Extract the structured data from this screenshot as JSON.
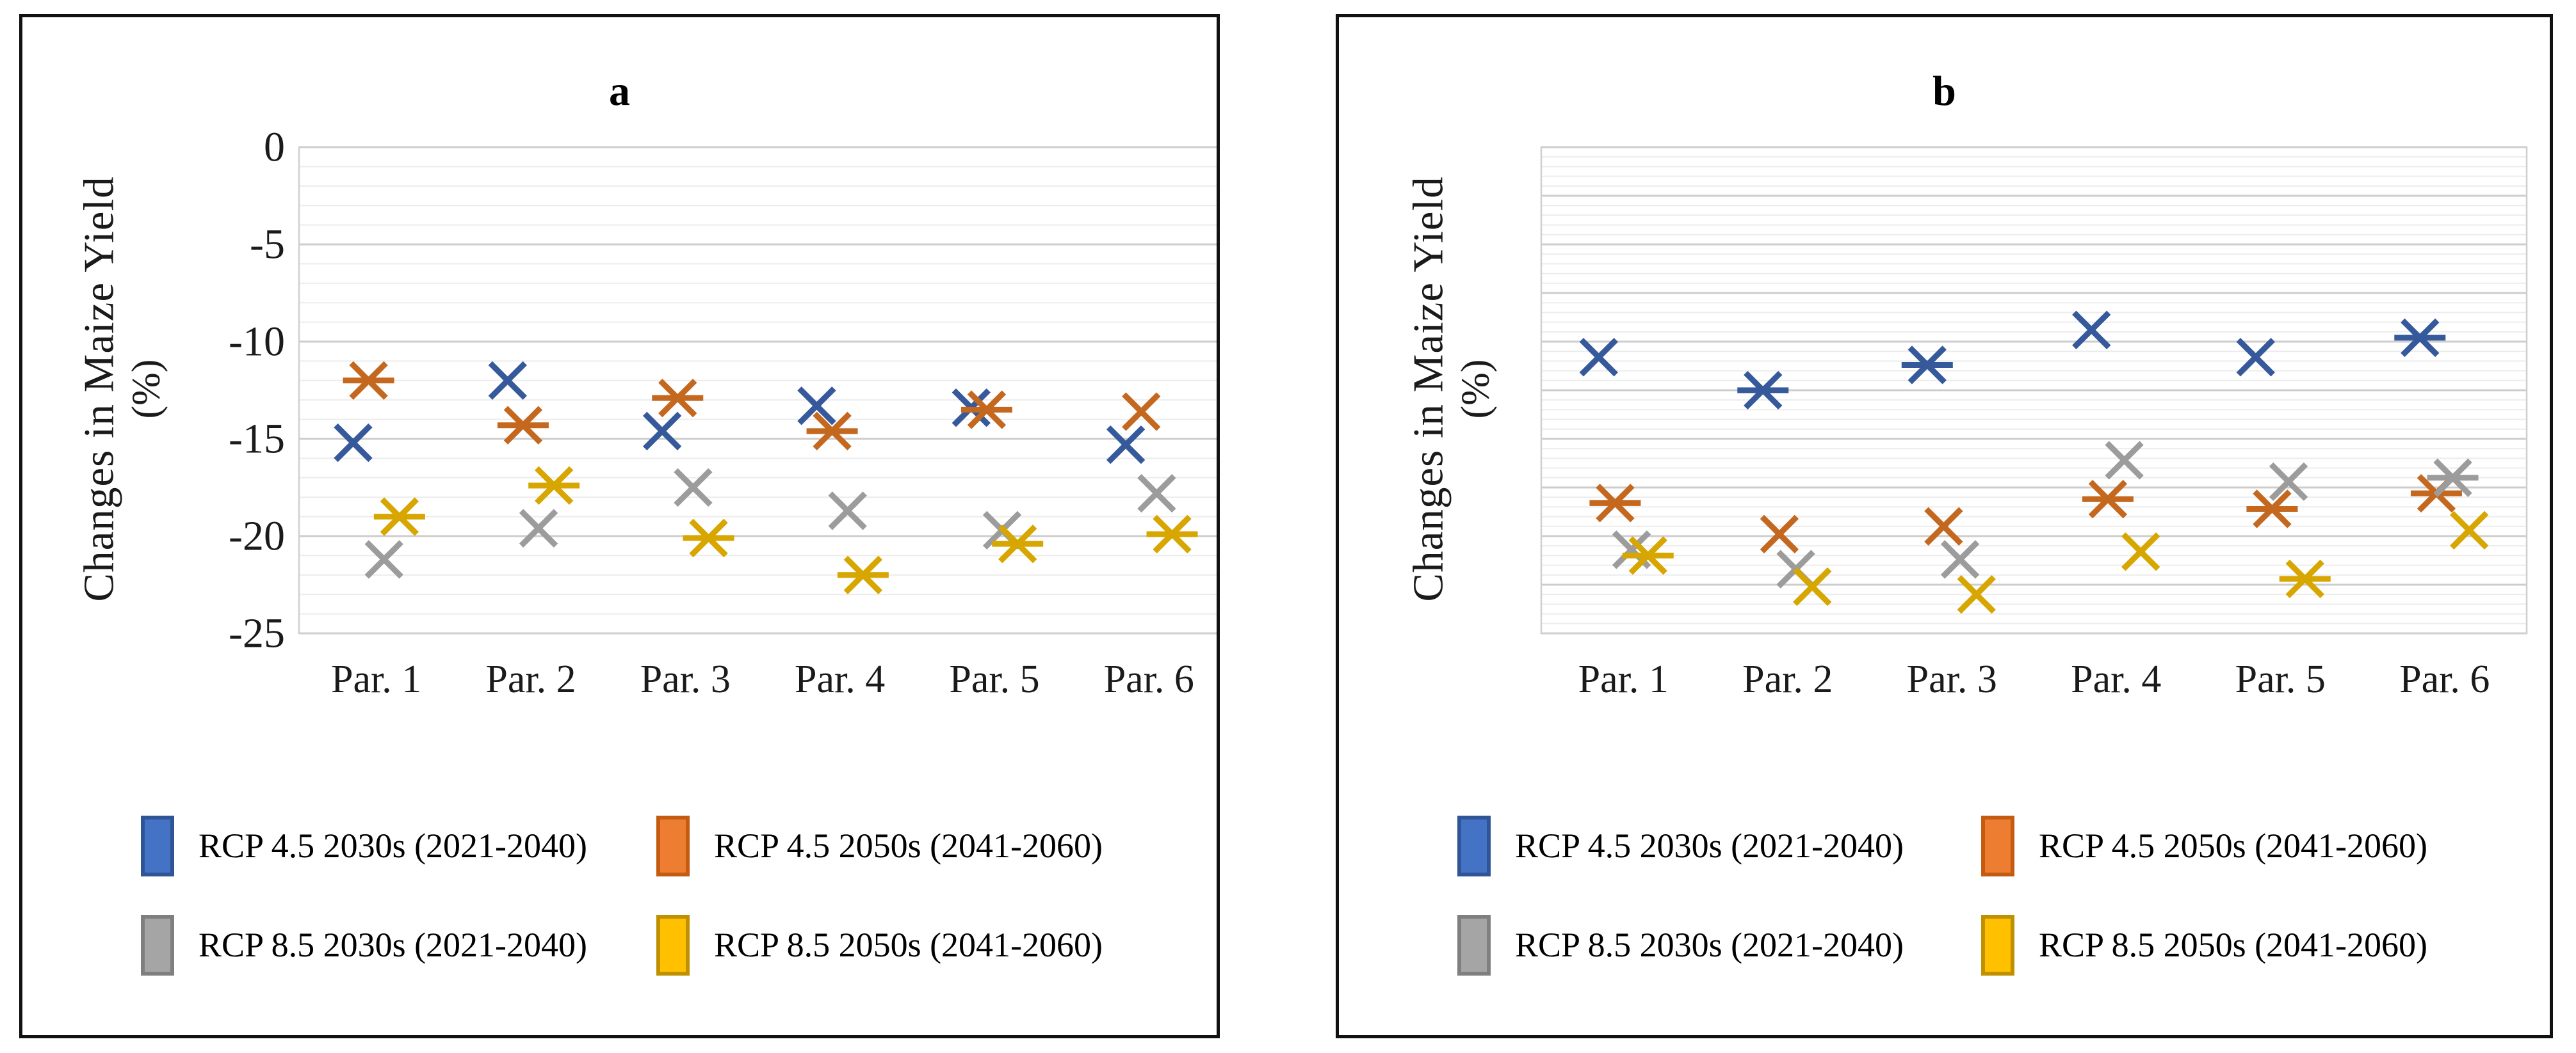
{
  "page": {
    "background": "#ffffff"
  },
  "panels": [
    {
      "title": "a",
      "y_label_line1": "Changes in Maize Yield",
      "y_label_line2": "(%)"
    },
    {
      "title": "b",
      "y_label_line1": "Changes in Maize Yield",
      "y_label_line2": "(%)"
    }
  ],
  "legend": {
    "items": [
      {
        "label": "RCP 4.5 2030s (2021-2040)",
        "fill": "#4472C4",
        "border": "#2F5597"
      },
      {
        "label": "RCP 4.5 2050s (2041-2060)",
        "fill": "#ED7D31",
        "border": "#C55A11"
      },
      {
        "label": "RCP 8.5 2030s (2021-2040)",
        "fill": "#A5A5A5",
        "border": "#7F7F7F"
      },
      {
        "label": "RCP 8.5 2050s (2041-2060)",
        "fill": "#FFC000",
        "border": "#BF9000"
      }
    ]
  },
  "style": {
    "gridline_major": "#CDCDCD",
    "gridline_minor": "#ECECEC",
    "plot_border": "#CFCFCF",
    "tick_text": "#1a1a1a",
    "series_offsets": [
      -0.15,
      -0.05,
      0.05,
      0.15
    ]
  },
  "chart_data": [
    {
      "type": "scatter",
      "panel": "a",
      "title": "a",
      "xlabel": "",
      "ylabel": "Changes in Maize Yield (%)",
      "categories": [
        "Par. 1",
        "Par. 2",
        "Par. 3",
        "Par. 4",
        "Par. 5",
        "Par. 6"
      ],
      "ylim": [
        -25,
        0
      ],
      "y_major_step": 5,
      "y_minor_step": 1,
      "grid": true,
      "legend_position": "bottom",
      "y_tick_labels": [
        "0",
        "-5",
        "-10",
        "-15",
        "-20",
        "-25"
      ],
      "series": [
        {
          "name": "RCP 4.5 2030s (2021-2040)",
          "color": "#35599B",
          "values": [
            -15.2,
            -12.0,
            -14.6,
            -13.3,
            -13.4,
            -15.3
          ],
          "marker_shapes": [
            "x",
            "x",
            "x",
            "x",
            "x",
            "x"
          ]
        },
        {
          "name": "RCP 4.5 2050s (2041-2060)",
          "color": "#C4681F",
          "values": [
            -12.0,
            -14.3,
            -12.9,
            -14.6,
            -13.5,
            -13.6
          ],
          "marker_shapes": [
            "star",
            "star",
            "star",
            "star",
            "star",
            "x"
          ]
        },
        {
          "name": "RCP 8.5 2030s (2021-2040)",
          "color": "#9C9C9C",
          "values": [
            -21.2,
            -19.6,
            -17.5,
            -18.7,
            -19.7,
            -17.8
          ],
          "marker_shapes": [
            "x",
            "x",
            "x",
            "x",
            "x",
            "x"
          ]
        },
        {
          "name": "RCP 8.5 2050s (2041-2060)",
          "color": "#D7A600",
          "values": [
            -19.0,
            -17.4,
            -20.1,
            -22.0,
            -20.4,
            -19.9
          ],
          "marker_shapes": [
            "star",
            "star",
            "star",
            "star",
            "star",
            "star"
          ]
        }
      ]
    },
    {
      "type": "scatter",
      "panel": "b",
      "title": "b",
      "xlabel": "",
      "ylabel": "Changes in Maize Yield (%)",
      "categories": [
        "Par. 1",
        "Par. 2",
        "Par. 3",
        "Par. 4",
        "Par. 5",
        "Par. 6"
      ],
      "ylim": [
        -25,
        0
      ],
      "y_major_step": 2.5,
      "y_minor_step": 0.5,
      "grid": true,
      "legend_position": "bottom",
      "y_tick_labels": [],
      "series": [
        {
          "name": "RCP 4.5 2030s (2021-2040)",
          "color": "#35599B",
          "values": [
            -10.8,
            -12.5,
            -11.2,
            -9.4,
            -10.8,
            -9.8
          ],
          "marker_shapes": [
            "x",
            "star",
            "star",
            "x",
            "x",
            "star"
          ]
        },
        {
          "name": "RCP 4.5 2050s (2041-2060)",
          "color": "#C4681F",
          "values": [
            -18.3,
            -19.9,
            -19.5,
            -18.1,
            -18.6,
            -17.8
          ],
          "marker_shapes": [
            "star",
            "x",
            "x",
            "star",
            "star",
            "star"
          ]
        },
        {
          "name": "RCP 8.5 2030s (2021-2040)",
          "color": "#9C9C9C",
          "values": [
            -20.7,
            -21.7,
            -21.2,
            -16.1,
            -17.2,
            -17.0
          ],
          "marker_shapes": [
            "x",
            "x",
            "x",
            "x",
            "x",
            "star"
          ]
        },
        {
          "name": "RCP 8.5 2050s (2041-2060)",
          "color": "#D7A600",
          "values": [
            -21.0,
            -22.6,
            -23.0,
            -20.8,
            -22.2,
            -19.7
          ],
          "marker_shapes": [
            "star",
            "x",
            "x",
            "x",
            "star",
            "x"
          ]
        }
      ]
    }
  ]
}
